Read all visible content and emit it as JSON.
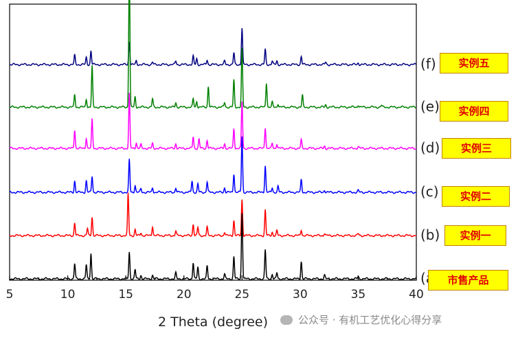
{
  "chart_data": {
    "type": "line",
    "xlabel": "2 Theta (degree)",
    "ylabel": "",
    "xlim": [
      5,
      40
    ],
    "xticks": [
      5,
      10,
      15,
      20,
      25,
      30,
      35,
      40
    ],
    "grid": false,
    "legend": "right",
    "series": [
      {
        "id": "f",
        "label": "(f)",
        "name": "实例五",
        "color": "#000080",
        "peaks": [
          [
            10.6,
            0.16
          ],
          [
            11.6,
            0.12
          ],
          [
            12.0,
            0.24
          ],
          [
            15.3,
            0.4
          ],
          [
            15.9,
            0.06
          ],
          [
            17.3,
            0.04
          ],
          [
            19.3,
            0.06
          ],
          [
            20.8,
            0.14
          ],
          [
            21.1,
            0.1
          ],
          [
            22.0,
            0.08
          ],
          [
            23.5,
            0.06
          ],
          [
            24.3,
            0.2
          ],
          [
            25.0,
            0.62
          ],
          [
            27.0,
            0.26
          ],
          [
            27.6,
            0.06
          ],
          [
            28.0,
            0.06
          ],
          [
            30.1,
            0.14
          ],
          [
            32.2,
            0.04
          ],
          [
            35.0,
            0.03
          ]
        ]
      },
      {
        "id": "e",
        "label": "(e)",
        "name": "实例四",
        "color": "#008000",
        "peaks": [
          [
            10.6,
            0.22
          ],
          [
            11.6,
            0.14
          ],
          [
            12.1,
            0.7
          ],
          [
            15.3,
            2.45
          ],
          [
            15.8,
            0.18
          ],
          [
            17.3,
            0.14
          ],
          [
            19.3,
            0.08
          ],
          [
            20.8,
            0.14
          ],
          [
            21.1,
            0.1
          ],
          [
            22.1,
            0.36
          ],
          [
            23.5,
            0.08
          ],
          [
            24.3,
            0.46
          ],
          [
            25.0,
            1.0
          ],
          [
            27.1,
            0.42
          ],
          [
            27.6,
            0.08
          ],
          [
            28.1,
            0.06
          ],
          [
            30.2,
            0.2
          ],
          [
            32.2,
            0.04
          ],
          [
            35.0,
            0.04
          ],
          [
            37.0,
            0.03
          ]
        ]
      },
      {
        "id": "d",
        "label": "(d)",
        "name": "实例三",
        "color": "#ff00ff",
        "peaks": [
          [
            10.6,
            0.32
          ],
          [
            11.6,
            0.18
          ],
          [
            12.1,
            0.5
          ],
          [
            15.3,
            0.94
          ],
          [
            15.9,
            0.1
          ],
          [
            16.3,
            0.06
          ],
          [
            17.3,
            0.08
          ],
          [
            19.3,
            0.08
          ],
          [
            20.8,
            0.2
          ],
          [
            21.3,
            0.16
          ],
          [
            22.0,
            0.14
          ],
          [
            23.5,
            0.08
          ],
          [
            24.3,
            0.34
          ],
          [
            25.0,
            0.8
          ],
          [
            27.0,
            0.36
          ],
          [
            27.6,
            0.08
          ],
          [
            28.0,
            0.08
          ],
          [
            30.1,
            0.14
          ],
          [
            32.1,
            0.04
          ],
          [
            35.0,
            0.03
          ]
        ]
      },
      {
        "id": "c",
        "label": "(c)",
        "name": "实例二",
        "color": "#0000ff",
        "peaks": [
          [
            10.6,
            0.2
          ],
          [
            11.6,
            0.2
          ],
          [
            12.1,
            0.28
          ],
          [
            15.3,
            0.56
          ],
          [
            15.8,
            0.12
          ],
          [
            16.3,
            0.06
          ],
          [
            17.3,
            0.08
          ],
          [
            19.3,
            0.08
          ],
          [
            20.7,
            0.2
          ],
          [
            21.2,
            0.14
          ],
          [
            22.0,
            0.18
          ],
          [
            23.5,
            0.08
          ],
          [
            24.3,
            0.32
          ],
          [
            25.0,
            0.96
          ],
          [
            27.0,
            0.46
          ],
          [
            27.6,
            0.08
          ],
          [
            28.1,
            0.1
          ],
          [
            30.1,
            0.22
          ],
          [
            32.1,
            0.04
          ],
          [
            35.0,
            0.03
          ]
        ]
      },
      {
        "id": "b",
        "label": "(b)",
        "name": "实例一",
        "color": "#ff0000",
        "peaks": [
          [
            10.6,
            0.22
          ],
          [
            11.7,
            0.12
          ],
          [
            12.1,
            0.32
          ],
          [
            15.2,
            0.72
          ],
          [
            15.8,
            0.1
          ],
          [
            16.3,
            0.05
          ],
          [
            17.3,
            0.16
          ],
          [
            19.3,
            0.08
          ],
          [
            20.8,
            0.2
          ],
          [
            21.2,
            0.14
          ],
          [
            22.0,
            0.14
          ],
          [
            23.5,
            0.06
          ],
          [
            24.3,
            0.26
          ],
          [
            25.0,
            0.62
          ],
          [
            27.0,
            0.44
          ],
          [
            27.6,
            0.06
          ],
          [
            28.0,
            0.08
          ],
          [
            30.1,
            0.1
          ],
          [
            32.1,
            0.04
          ],
          [
            35.0,
            0.03
          ]
        ]
      },
      {
        "id": "a",
        "label": "(a)",
        "name": "市售产品",
        "color": "#000000",
        "peaks": [
          [
            10.6,
            0.26
          ],
          [
            11.6,
            0.24
          ],
          [
            12.0,
            0.44
          ],
          [
            15.3,
            0.46
          ],
          [
            15.8,
            0.16
          ],
          [
            16.3,
            0.06
          ],
          [
            17.3,
            0.06
          ],
          [
            19.3,
            0.1
          ],
          [
            20.8,
            0.28
          ],
          [
            21.2,
            0.2
          ],
          [
            22.0,
            0.22
          ],
          [
            23.5,
            0.08
          ],
          [
            24.3,
            0.38
          ],
          [
            25.0,
            1.14
          ],
          [
            27.0,
            0.5
          ],
          [
            27.6,
            0.08
          ],
          [
            28.0,
            0.1
          ],
          [
            30.1,
            0.3
          ],
          [
            32.1,
            0.06
          ],
          [
            35.0,
            0.04
          ]
        ]
      }
    ]
  },
  "watermark": {
    "text": "公众号 · 有机工艺优化心得分享",
    "icon": "wechat-icon"
  }
}
